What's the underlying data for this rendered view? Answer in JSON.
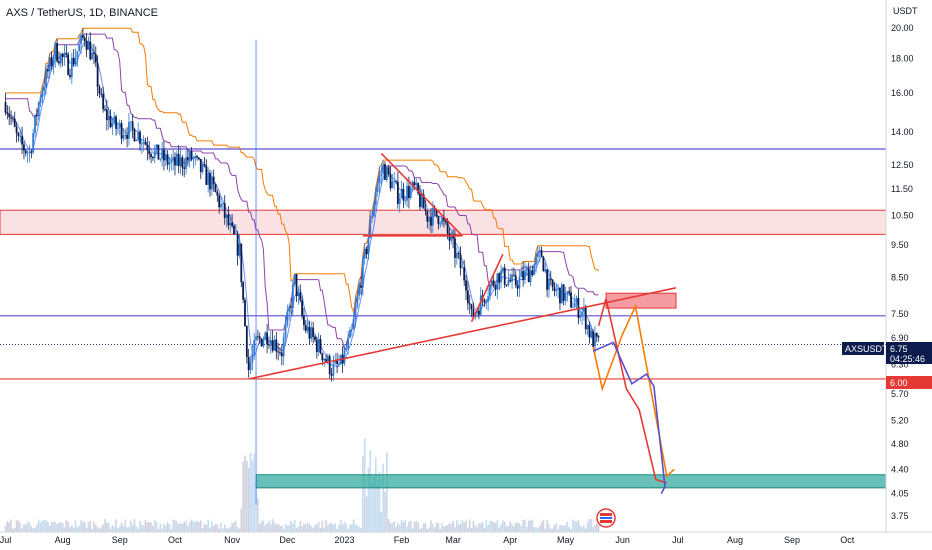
{
  "chart_data": {
    "type": "candlestick",
    "title": "AXS / TetherUS, 1D, BINANCE",
    "currency": "USDT",
    "y_ticks": [
      3.75,
      4.05,
      4.4,
      4.8,
      5.2,
      5.7,
      6.3,
      6.9,
      7.5,
      8.5,
      9.5,
      10.5,
      11.5,
      12.5,
      14.0,
      16.0,
      18.0,
      20.0
    ],
    "y_tick_labels": [
      "3.75",
      "4.05",
      "4.40",
      "4.80",
      "5.20",
      "5.70",
      "6.30",
      "6.90",
      "7.50",
      "8.50",
      "9.50",
      "10.50",
      "11.50",
      "12.50",
      "14.00",
      "16.00",
      "18.00",
      "20.00"
    ],
    "y_scale": "log",
    "ylim": [
      3.55,
      22.0
    ],
    "x_labels": [
      "Jul",
      "Aug",
      "Sep",
      "Oct",
      "Nov",
      "Dec",
      "2023",
      "Feb",
      "Mar",
      "Apr",
      "May",
      "Jun",
      "Jul",
      "Aug",
      "Sep",
      "Oct"
    ],
    "x_label_months": [
      "2022-07-01",
      "2022-08-01",
      "2022-09-01",
      "2022-10-01",
      "2022-11-01",
      "2022-12-01",
      "2023-01-01",
      "2023-02-01",
      "2023-03-01",
      "2023-04-01",
      "2023-05-01",
      "2023-06-01",
      "2023-07-01",
      "2023-08-01",
      "2023-09-01",
      "2023-10-01"
    ],
    "last_price": {
      "symbol": "AXSUSDT",
      "value": "6.75",
      "countdown": "04:25:46"
    },
    "price_marker": {
      "value": 6.0,
      "label": "6.00"
    },
    "horizontal_levels": [
      {
        "value": 13.2,
        "color": "#5b4fcf"
      },
      {
        "value": 7.45,
        "color": "#5b4fcf"
      },
      {
        "value": 6.0,
        "color": "#e53935"
      }
    ],
    "zones": [
      {
        "from": 9.85,
        "to": 10.7,
        "color": "#f8d7da",
        "edge": "#e53935"
      },
      {
        "from": 4.13,
        "to": 4.32,
        "color": "#26a69a"
      }
    ],
    "target_box": {
      "date_from": "2023-05-23",
      "date_to": "2023-06-30",
      "from": 7.65,
      "to": 8.05
    },
    "trendlines": [
      {
        "from": [
          "2022-11-10",
          6.0
        ],
        "to": [
          "2023-06-30",
          8.2
        ],
        "color": "#e53935"
      },
      {
        "from": [
          "2023-01-21",
          13.0
        ],
        "to": [
          "2023-03-06",
          9.8
        ],
        "color": "#e53935"
      },
      {
        "from": [
          "2023-01-11",
          9.8
        ],
        "to": [
          "2023-03-06",
          9.8
        ],
        "color": "#e53935"
      },
      {
        "from": [
          "2023-03-11",
          7.3
        ],
        "to": [
          "2023-03-28",
          9.2
        ],
        "color": "#e53935"
      }
    ],
    "projections": [
      {
        "color": "#f57c00",
        "points": [
          [
            "2023-05-16",
            6.7
          ],
          [
            "2023-05-21",
            5.8
          ],
          [
            "2023-06-01",
            7.0
          ],
          [
            "2023-06-08",
            7.7
          ],
          [
            "2023-06-25",
            4.3
          ],
          [
            "2023-06-29",
            4.4
          ]
        ]
      },
      {
        "color": "#e53935",
        "points": [
          [
            "2023-05-19",
            7.2
          ],
          [
            "2023-05-23",
            7.9
          ],
          [
            "2023-06-03",
            5.8
          ],
          [
            "2023-06-10",
            5.4
          ],
          [
            "2023-06-19",
            4.25
          ],
          [
            "2023-06-25",
            4.2
          ]
        ]
      },
      {
        "color": "#5b4fcf",
        "points": [
          [
            "2023-05-16",
            6.6
          ],
          [
            "2023-05-27",
            6.8
          ],
          [
            "2023-06-06",
            5.9
          ],
          [
            "2023-06-14",
            6.1
          ],
          [
            "2023-06-18",
            5.85
          ],
          [
            "2023-06-24",
            4.15
          ],
          [
            "2023-06-22",
            4.05
          ]
        ]
      }
    ],
    "indicator_colors": {
      "orange": "#f57c00",
      "purple": "#8e44ad",
      "blue": "#2962ff"
    },
    "candle_colors": {
      "up": "#2e7bcf",
      "down": "#0d1b4c"
    },
    "price_path": [
      [
        "2022-07-01",
        15.5
      ],
      [
        "2022-07-08",
        13.5
      ],
      [
        "2022-07-14",
        13.0
      ],
      [
        "2022-07-20",
        16.0
      ],
      [
        "2022-07-28",
        18.5
      ],
      [
        "2022-08-05",
        17.5
      ],
      [
        "2022-08-13",
        19.5
      ],
      [
        "2022-08-18",
        17.8
      ],
      [
        "2022-08-23",
        15.0
      ],
      [
        "2022-08-30",
        14.2
      ],
      [
        "2022-09-10",
        14.0
      ],
      [
        "2022-09-20",
        13.0
      ],
      [
        "2022-09-30",
        12.5
      ],
      [
        "2022-10-10",
        12.8
      ],
      [
        "2022-10-20",
        11.8
      ],
      [
        "2022-10-25",
        11.0
      ],
      [
        "2022-10-31",
        10.0
      ],
      [
        "2022-11-05",
        9.3
      ],
      [
        "2022-11-08",
        7.2
      ],
      [
        "2022-11-10",
        6.2
      ],
      [
        "2022-11-14",
        6.8
      ],
      [
        "2022-11-20",
        7.0
      ],
      [
        "2022-11-28",
        6.6
      ],
      [
        "2022-12-05",
        8.4
      ],
      [
        "2022-12-10",
        7.2
      ],
      [
        "2022-12-18",
        6.7
      ],
      [
        "2022-12-25",
        6.2
      ],
      [
        "2022-12-30",
        6.3
      ],
      [
        "2023-01-05",
        7.0
      ],
      [
        "2023-01-09",
        8.2
      ],
      [
        "2023-01-13",
        9.4
      ],
      [
        "2023-01-18",
        11.5
      ],
      [
        "2023-01-22",
        12.4
      ],
      [
        "2023-01-30",
        11.3
      ],
      [
        "2023-02-08",
        11.5
      ],
      [
        "2023-02-15",
        10.5
      ],
      [
        "2023-02-22",
        10.5
      ],
      [
        "2023-03-01",
        9.4
      ],
      [
        "2023-03-08",
        8.4
      ],
      [
        "2023-03-11",
        7.4
      ],
      [
        "2023-03-18",
        8.0
      ],
      [
        "2023-03-26",
        8.6
      ],
      [
        "2023-04-03",
        8.3
      ],
      [
        "2023-04-12",
        8.7
      ],
      [
        "2023-04-18",
        9.2
      ],
      [
        "2023-04-22",
        8.2
      ],
      [
        "2023-04-30",
        8.0
      ],
      [
        "2023-05-07",
        7.7
      ],
      [
        "2023-05-11",
        7.5
      ],
      [
        "2023-05-15",
        6.9
      ],
      [
        "2023-05-19",
        6.75
      ]
    ]
  }
}
